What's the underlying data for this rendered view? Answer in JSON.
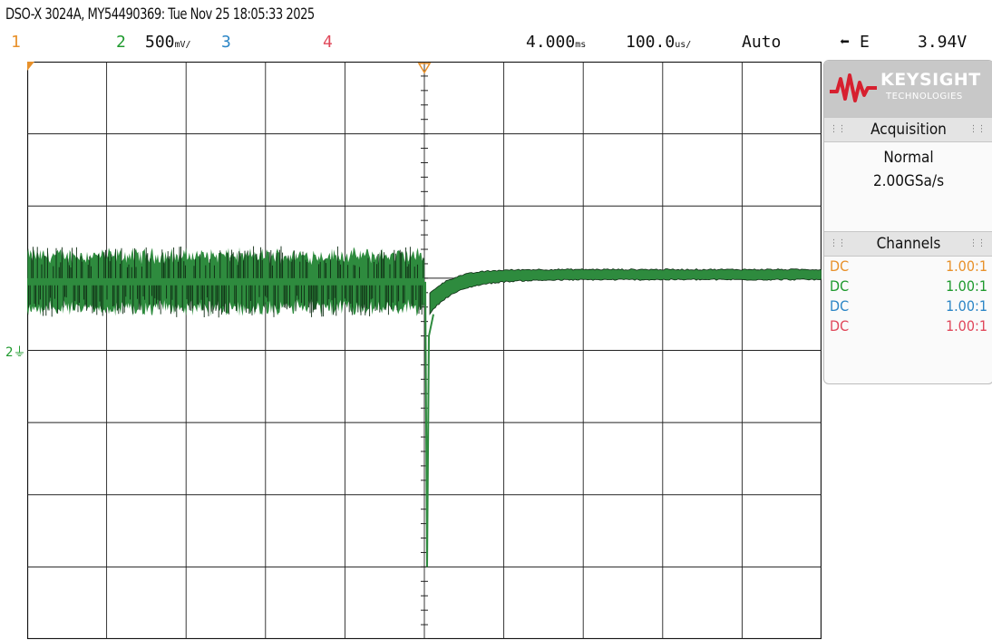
{
  "title": "DSO-X 3024A, MY54490369: Tue Nov 25 18:05:33 2025",
  "header": {
    "ch1_label": "1",
    "ch2_label": "2",
    "ch2_scale": "500",
    "ch2_scale_unit": "mV/",
    "ch3_label": "3",
    "ch4_label": "4",
    "time_delay": "4.000",
    "time_delay_unit": "ms",
    "time_scale": "100.0",
    "time_scale_unit": "us/",
    "trigger_mode": "Auto",
    "trigger_slope_icon": "rising-edge-icon",
    "trigger_source": "E",
    "trigger_level": "3.94V"
  },
  "colors": {
    "ch1": "#e8912b",
    "ch2": "#1f9a2e",
    "ch3": "#2c86c6",
    "ch4": "#e0485a",
    "trace_fill": "#2e8b3e",
    "trace_dark": "#0d2a12"
  },
  "sidebar": {
    "brand": "KEYSIGHT",
    "brand_sub": "TECHNOLOGIES",
    "acquisition": {
      "heading": "Acquisition",
      "mode": "Normal",
      "rate": "2.00GSa/s"
    },
    "channels": {
      "heading": "Channels",
      "rows": [
        {
          "coupling": "DC",
          "ratio": "1.00:1"
        },
        {
          "coupling": "DC",
          "ratio": "1.00:1"
        },
        {
          "coupling": "DC",
          "ratio": "1.00:1"
        },
        {
          "coupling": "DC",
          "ratio": "1.00:1"
        }
      ]
    }
  },
  "ground_marker": "2",
  "chart_data": {
    "type": "line",
    "x_divisions": 10,
    "y_divisions": 8,
    "series": [
      {
        "name": "2",
        "description_points": [
          {
            "x_div": 0,
            "y_div_from_center": 0.95
          },
          {
            "x_div": 5,
            "y_div_from_center": 0.95
          },
          {
            "x_div": 5.05,
            "y_div_from_center": -3.0
          },
          {
            "x_div": 5.2,
            "y_div_from_center": 0.55
          },
          {
            "x_div": 6,
            "y_div_from_center": 0.85
          },
          {
            "x_div": 10,
            "y_div_from_center": 1.05
          }
        ]
      }
    ]
  }
}
